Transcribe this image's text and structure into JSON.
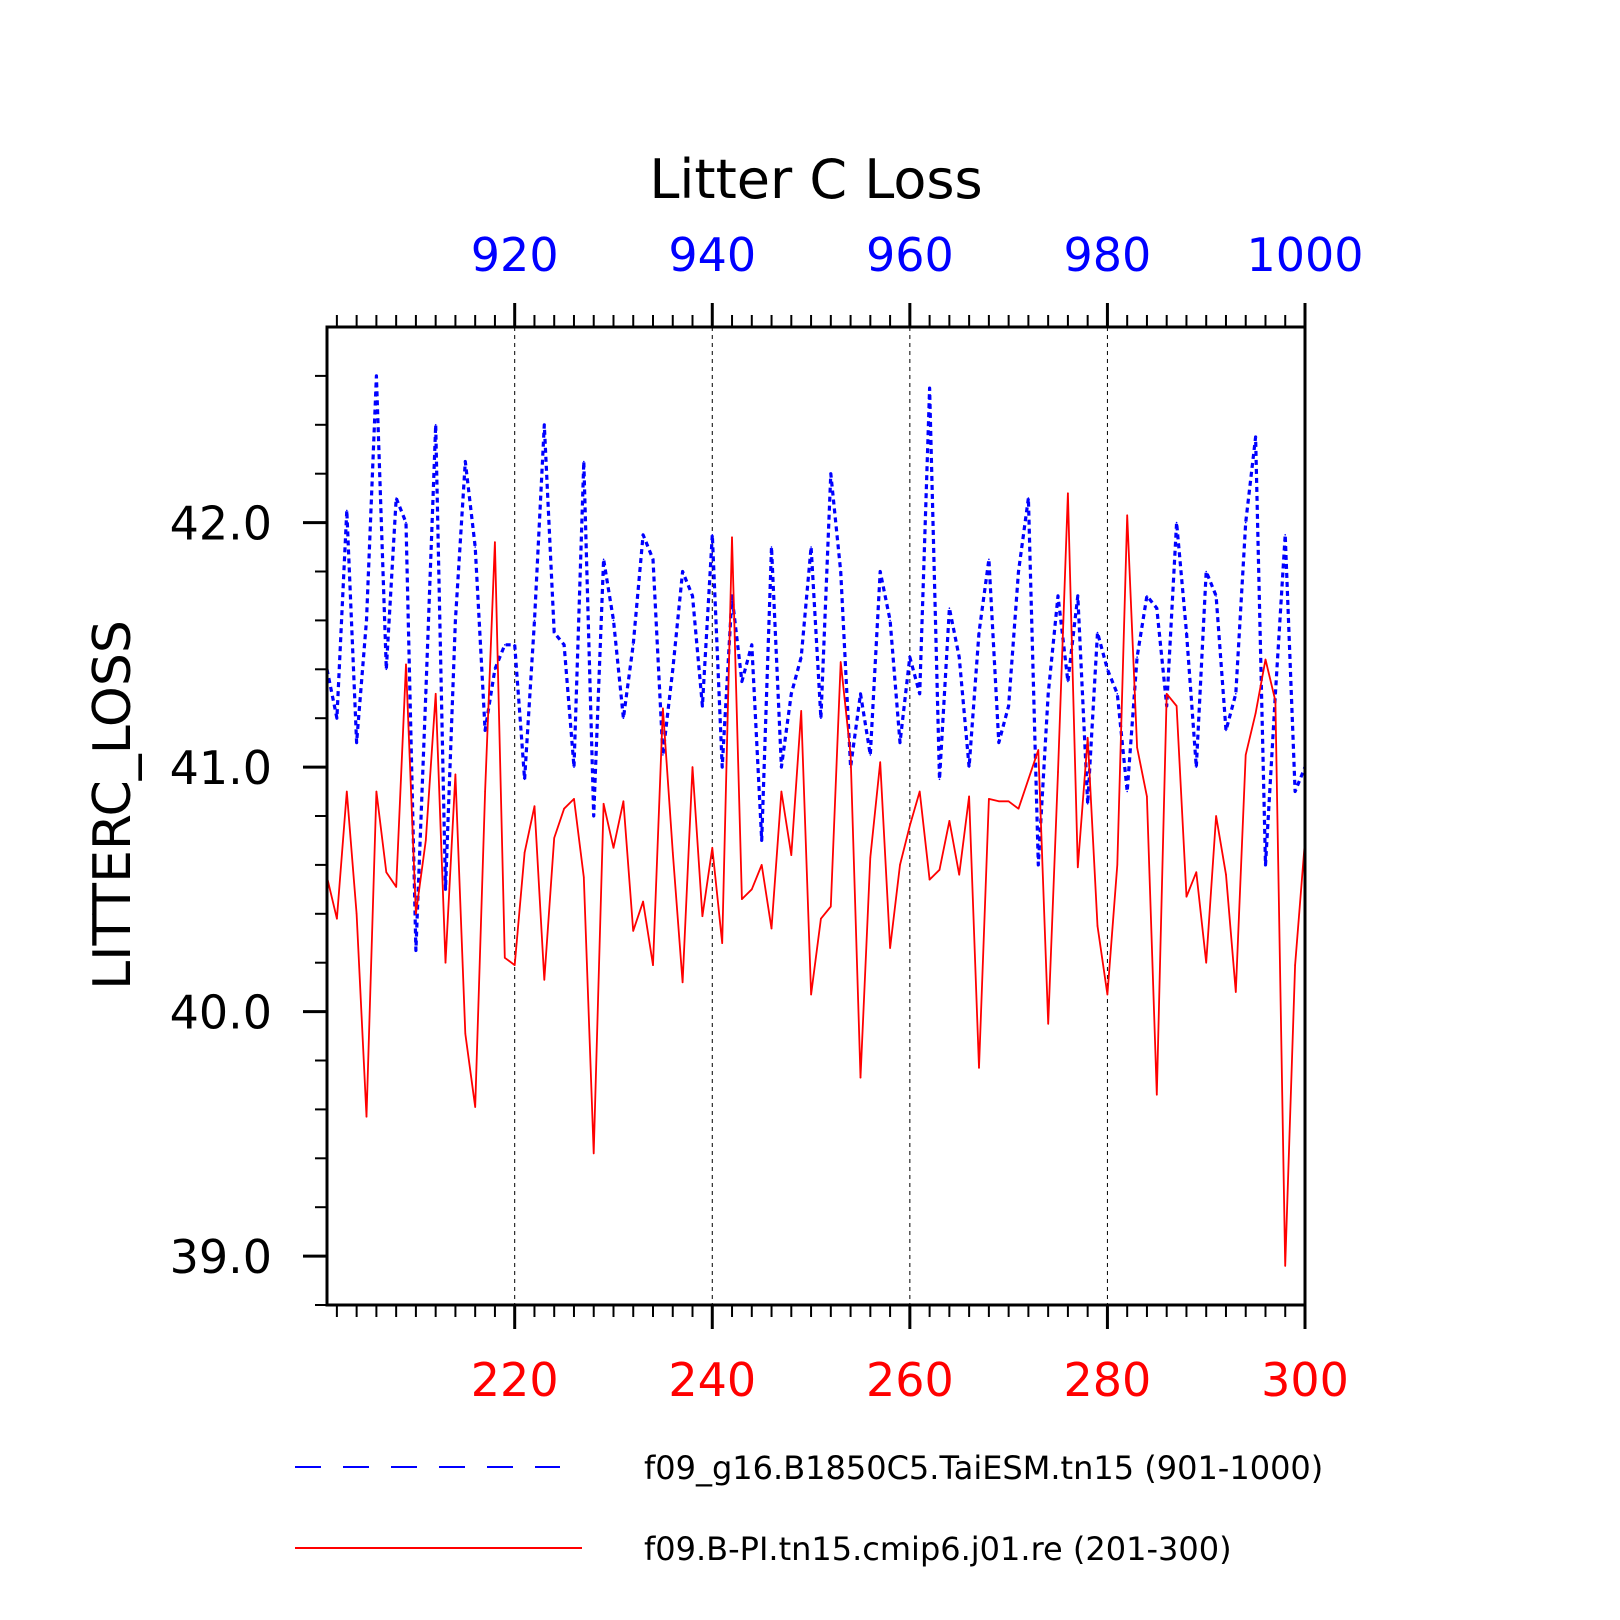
{
  "chart_data": {
    "type": "line",
    "title": "Litter C Loss",
    "ylabel": "LITTERC_LOSS",
    "ylim": [
      38.8,
      42.8
    ],
    "yticks": [
      39.0,
      40.0,
      41.0,
      42.0
    ],
    "ytick_labels": [
      "39.0",
      "40.0",
      "41.0",
      "42.0"
    ],
    "grid": "vertical dashed at major x ticks",
    "legend_position": "bottom",
    "axes": {
      "bottom": {
        "range": [
          201,
          300
        ],
        "ticks": [
          220,
          240,
          260,
          280,
          300
        ],
        "color": "#ff0000"
      },
      "top": {
        "range": [
          901,
          1000
        ],
        "ticks": [
          920,
          940,
          960,
          980,
          1000
        ],
        "color": "#0000ff"
      }
    },
    "series": [
      {
        "name": "f09_g16.B1850C5.TaiESM.tn15 (901-1000)",
        "axis": "top",
        "color": "#0000ff",
        "style": "dashed",
        "x_start": 901,
        "values": [
          41.4,
          41.2,
          42.05,
          41.1,
          41.6,
          42.6,
          41.4,
          42.1,
          42.0,
          40.25,
          41.3,
          42.4,
          40.5,
          41.6,
          42.25,
          41.9,
          41.15,
          41.4,
          41.5,
          41.5,
          40.95,
          41.6,
          42.4,
          41.55,
          41.5,
          41.0,
          42.25,
          40.8,
          41.85,
          41.6,
          41.2,
          41.5,
          41.95,
          41.85,
          41.05,
          41.4,
          41.8,
          41.7,
          41.25,
          41.95,
          41.0,
          41.7,
          41.35,
          41.5,
          40.7,
          41.9,
          41.0,
          41.3,
          41.45,
          41.9,
          41.2,
          42.2,
          41.8,
          41.0,
          41.3,
          41.05,
          41.8,
          41.6,
          41.1,
          41.45,
          41.3,
          42.55,
          40.95,
          41.65,
          41.45,
          41.0,
          41.55,
          41.85,
          41.1,
          41.25,
          41.8,
          42.1,
          40.6,
          41.3,
          41.7,
          41.35,
          41.7,
          40.85,
          41.55,
          41.4,
          41.3,
          40.9,
          41.45,
          41.7,
          41.65,
          41.25,
          42.0,
          41.55,
          41.0,
          41.8,
          41.7,
          41.15,
          41.3,
          42.0,
          42.35,
          40.6,
          41.3,
          41.95,
          40.9,
          41.0
        ]
      },
      {
        "name": "f09.B-PI.tn15.cmip6.j01.re (201-300)",
        "axis": "bottom",
        "color": "#ff0000",
        "style": "solid",
        "x_start": 201,
        "values": [
          40.55,
          40.38,
          40.9,
          40.4,
          39.57,
          40.9,
          40.57,
          40.51,
          41.42,
          40.4,
          40.7,
          41.3,
          40.2,
          40.97,
          39.91,
          39.61,
          40.9,
          41.92,
          40.22,
          40.19,
          40.65,
          40.84,
          40.13,
          40.71,
          40.83,
          40.87,
          40.55,
          39.42,
          40.85,
          40.67,
          40.86,
          40.33,
          40.45,
          40.19,
          41.24,
          40.65,
          40.12,
          41.0,
          40.39,
          40.67,
          40.28,
          41.94,
          40.46,
          40.5,
          40.6,
          40.34,
          40.9,
          40.64,
          41.23,
          40.07,
          40.38,
          40.43,
          41.43,
          41.05,
          39.73,
          40.63,
          41.02,
          40.26,
          40.6,
          40.76,
          40.9,
          40.54,
          40.58,
          40.78,
          40.56,
          40.88,
          39.77,
          40.87,
          40.86,
          40.86,
          40.83,
          40.95,
          41.07,
          39.95,
          40.98,
          42.12,
          40.59,
          41.12,
          40.35,
          40.07,
          40.6,
          42.03,
          41.08,
          40.88,
          39.66,
          41.3,
          41.25,
          40.47,
          40.57,
          40.2,
          40.8,
          40.56,
          40.08,
          41.05,
          41.22,
          41.44,
          41.27,
          38.96,
          40.19,
          40.7
        ]
      }
    ]
  }
}
